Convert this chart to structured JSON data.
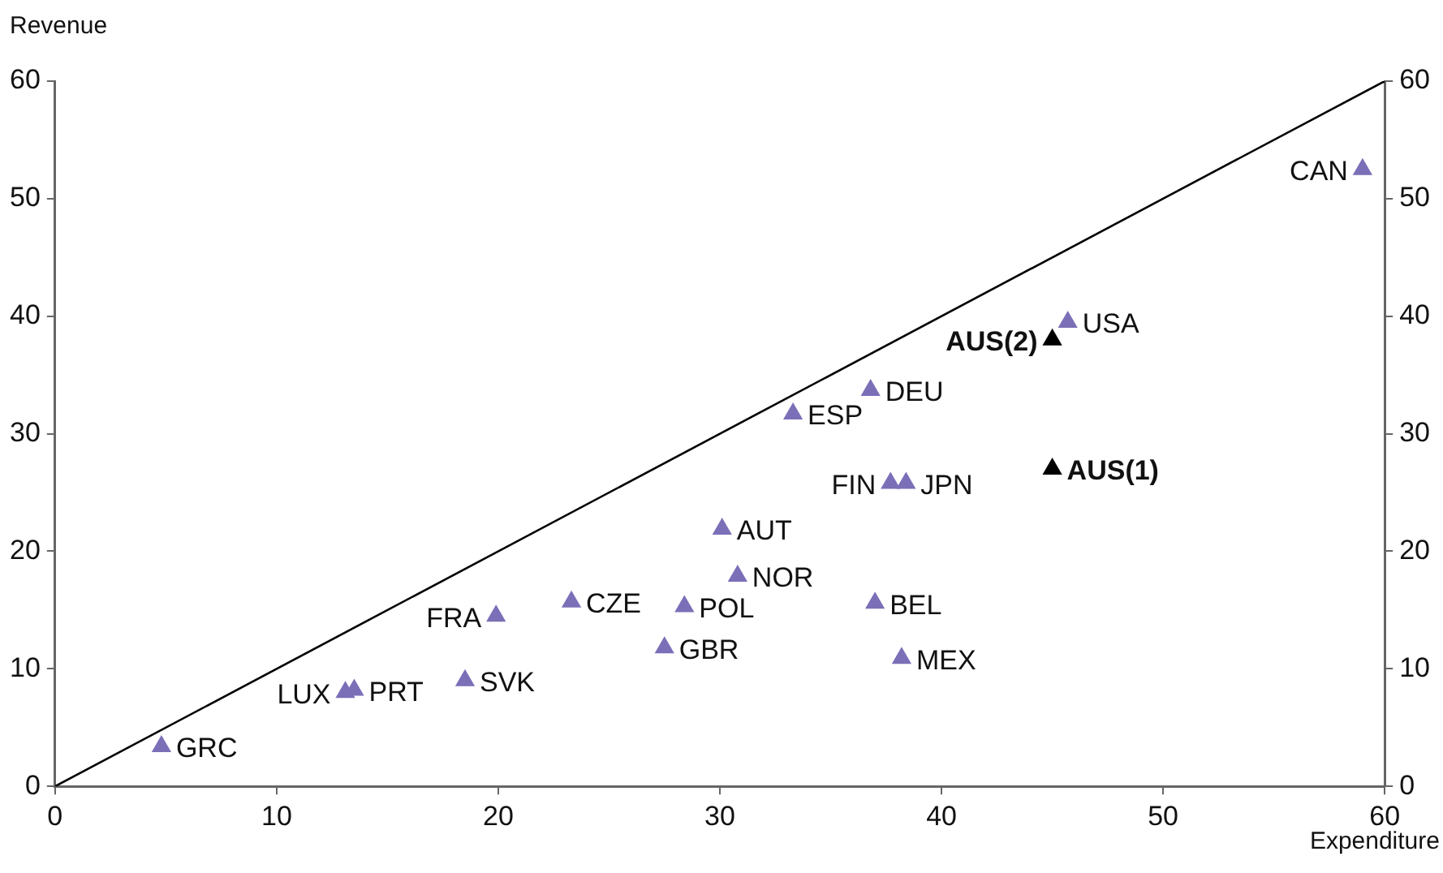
{
  "chart_data": {
    "type": "scatter",
    "xlabel": "Expenditure",
    "ylabel": "Revenue",
    "xlim": [
      0,
      60
    ],
    "xticks": [
      0,
      10,
      20,
      30,
      40,
      50,
      60
    ],
    "ylim": [
      0,
      60
    ],
    "yticks": [
      0,
      10,
      20,
      30,
      40,
      50,
      60
    ],
    "y2lim": [
      0,
      60
    ],
    "y2ticks": [
      0,
      10,
      20,
      30,
      40,
      50,
      60
    ],
    "grid": false,
    "legend": false,
    "marker": "triangle",
    "series": [
      {
        "type": "scatter",
        "color": "#7b6fb8",
        "x": [
          4.8,
          13.1,
          13.5,
          18.5,
          19.9,
          23.3,
          28.4,
          27.5,
          30.1,
          30.8,
          33.3,
          36.8,
          37.7,
          38.4,
          37.0,
          38.2,
          45.7,
          59.0
        ],
        "values": [
          3.4,
          8.0,
          8.2,
          9.0,
          14.5,
          15.7,
          15.3,
          11.8,
          21.9,
          17.9,
          31.7,
          33.7,
          25.8,
          25.8,
          15.6,
          10.9,
          39.5,
          52.5
        ]
      },
      {
        "type": "scatter",
        "color": "#000000",
        "x": [
          45.0,
          45.0
        ],
        "values": [
          38.0,
          27.0
        ]
      },
      {
        "type": "line",
        "color": "#000000",
        "marker": "none",
        "x": [
          0,
          60
        ],
        "values": [
          0,
          60
        ]
      }
    ],
    "annotations": [
      {
        "text": "GRC",
        "x": 4.8,
        "y": 3.4
      },
      {
        "text": "LUX",
        "x": 13.1,
        "y": 8.0
      },
      {
        "text": "PRT",
        "x": 13.5,
        "y": 8.2
      },
      {
        "text": "SVK",
        "x": 18.5,
        "y": 9.0
      },
      {
        "text": "FRA",
        "x": 19.9,
        "y": 14.5
      },
      {
        "text": "CZE",
        "x": 23.3,
        "y": 15.7
      },
      {
        "text": "POL",
        "x": 28.4,
        "y": 15.3
      },
      {
        "text": "GBR",
        "x": 27.5,
        "y": 11.8
      },
      {
        "text": "AUT",
        "x": 30.1,
        "y": 21.9
      },
      {
        "text": "NOR",
        "x": 30.8,
        "y": 17.9
      },
      {
        "text": "ESP",
        "x": 33.3,
        "y": 31.7
      },
      {
        "text": "DEU",
        "x": 36.8,
        "y": 33.7
      },
      {
        "text": "FIN",
        "x": 37.7,
        "y": 25.8
      },
      {
        "text": "JPN",
        "x": 38.4,
        "y": 25.8
      },
      {
        "text": "BEL",
        "x": 37.0,
        "y": 15.6
      },
      {
        "text": "MEX",
        "x": 38.2,
        "y": 10.9
      },
      {
        "text": "USA",
        "x": 45.7,
        "y": 39.5
      },
      {
        "text": "CAN",
        "x": 59.0,
        "y": 52.5
      },
      {
        "text": "AUS(2)",
        "x": 45.0,
        "y": 38.0
      },
      {
        "text": "AUS(1)",
        "x": 45.0,
        "y": 27.0
      }
    ]
  }
}
